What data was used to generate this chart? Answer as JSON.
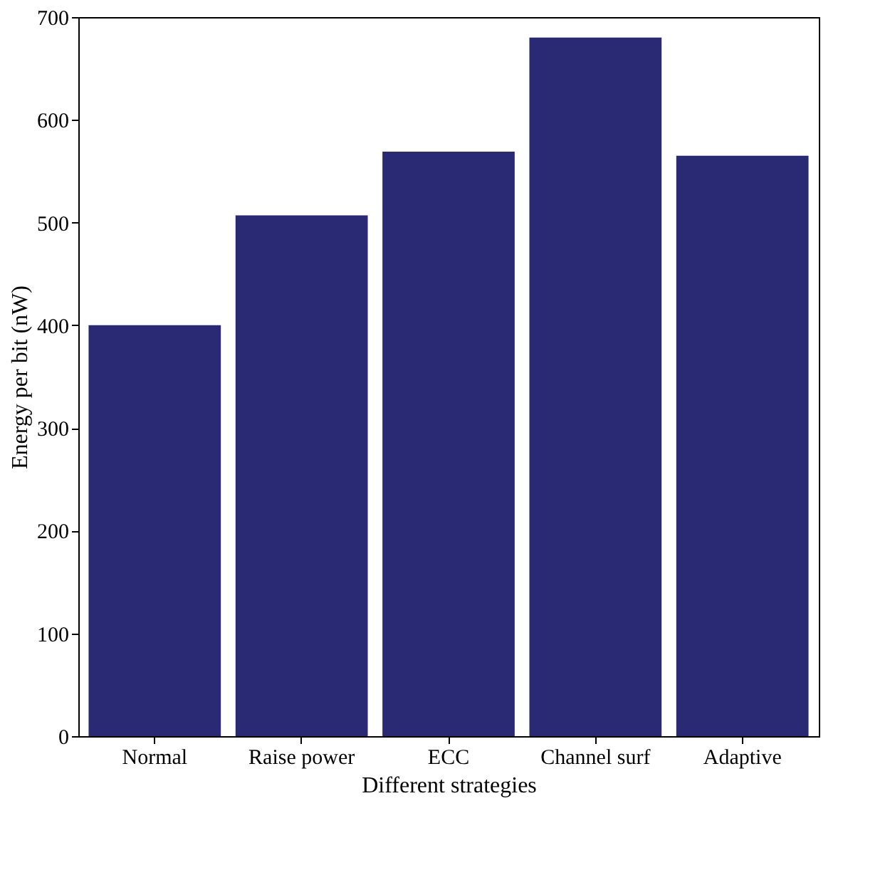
{
  "chart_data": {
    "type": "bar",
    "xlabel": "Different strategies",
    "ylabel": "Energy per bit (nW)",
    "categories": [
      "Normal",
      "Raise power",
      "ECC",
      "Channel surf",
      "Adaptive"
    ],
    "values": [
      400,
      507,
      569,
      680,
      565
    ],
    "color": "#2a2a74",
    "ylim": [
      0,
      700
    ],
    "yticks": [
      0,
      100,
      200,
      300,
      400,
      500,
      600,
      700
    ],
    "grid": false
  }
}
